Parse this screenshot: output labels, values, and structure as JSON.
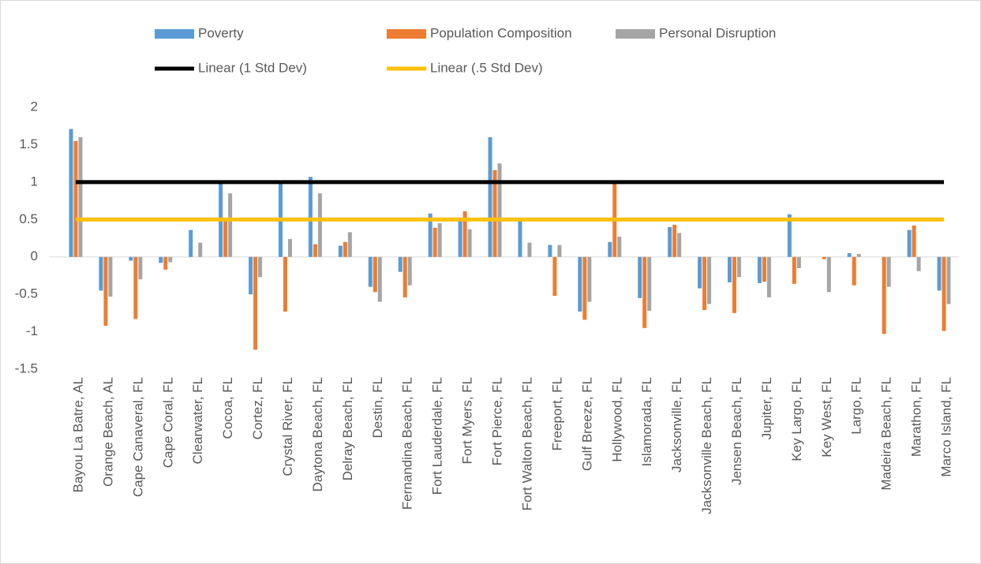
{
  "chart_data": {
    "type": "bar",
    "categories": [
      "Bayou La Batre, AL",
      "Orange Beach, AL",
      "Cape Canaveral, FL",
      "Cape Coral, FL",
      "Clearwater, FL",
      "Cocoa, FL",
      "Cortez, FL",
      "Crystal River, FL",
      "Daytona Beach, FL",
      "Delray Beach, FL",
      "Destin, FL",
      "Fernandina Beach, FL",
      "Fort Lauderdale, FL",
      "Fort Myers, FL",
      "Fort Pierce, FL",
      "Fort Walton Beach, FL",
      "Freeport, FL",
      "Gulf Breeze, FL",
      "Hollywood, FL",
      "Islamorada, FL",
      "Jacksonville, FL",
      "Jacksonville Beach, FL",
      "Jensen Beach, FL",
      "Jupiter, FL",
      "Key Largo, FL",
      "Key West, FL",
      "Largo, FL",
      "Madeira Beach, FL",
      "Marathon, FL",
      "Marco Island, FL"
    ],
    "series": [
      {
        "name": "Poverty",
        "type": "bar",
        "color": "#5b9bd5",
        "values": [
          1.71,
          -0.45,
          -0.05,
          -0.08,
          0.36,
          1.0,
          -0.5,
          1.0,
          1.07,
          0.15,
          -0.4,
          -0.2,
          0.58,
          0.5,
          1.6,
          0.48,
          0.16,
          -0.73,
          0.2,
          -0.55,
          0.4,
          -0.42,
          -0.34,
          -0.35,
          0.57,
          0,
          0.05,
          0,
          0.36,
          -0.45
        ]
      },
      {
        "name": "Population Composition",
        "type": "bar",
        "color": "#ed7d31",
        "values": [
          1.55,
          -0.92,
          -0.83,
          -0.17,
          0,
          0.5,
          -1.24,
          -0.73,
          0.17,
          0.2,
          -0.47,
          -0.54,
          0.39,
          0.61,
          1.16,
          0,
          -0.52,
          -0.84,
          0.98,
          -0.95,
          0.43,
          -0.71,
          -0.75,
          -0.33,
          -0.36,
          -0.03,
          -0.38,
          -1.03,
          0.42,
          -0.99
        ]
      },
      {
        "name": "Personal Disruption",
        "type": "bar",
        "color": "#a5a5a5",
        "values": [
          1.6,
          -0.53,
          -0.3,
          -0.07,
          0.19,
          0.85,
          -0.27,
          0.24,
          0.85,
          0.33,
          -0.6,
          -0.38,
          0.45,
          0.37,
          1.25,
          0.19,
          0.16,
          -0.6,
          0.27,
          -0.72,
          0.32,
          -0.63,
          -0.27,
          -0.54,
          -0.15,
          -0.47,
          0.04,
          -0.4,
          -0.19,
          -0.63
        ]
      },
      {
        "name": "Linear (1 Std Dev)",
        "type": "line",
        "color": "#000000",
        "values": [
          1,
          1,
          1,
          1,
          1,
          1,
          1,
          1,
          1,
          1,
          1,
          1,
          1,
          1,
          1,
          1,
          1,
          1,
          1,
          1,
          1,
          1,
          1,
          1,
          1,
          1,
          1,
          1,
          1,
          1
        ]
      },
      {
        "name": "Linear (.5 Std Dev)",
        "type": "line",
        "color": "#ffc000",
        "values": [
          0.5,
          0.5,
          0.5,
          0.5,
          0.5,
          0.5,
          0.5,
          0.5,
          0.5,
          0.5,
          0.5,
          0.5,
          0.5,
          0.5,
          0.5,
          0.5,
          0.5,
          0.5,
          0.5,
          0.5,
          0.5,
          0.5,
          0.5,
          0.5,
          0.5,
          0.5,
          0.5,
          0.5,
          0.5,
          0.5
        ]
      }
    ],
    "ylim": [
      -1.5,
      2
    ],
    "yticks": [
      -1.5,
      -1,
      -0.5,
      0,
      0.5,
      1,
      1.5,
      2
    ]
  }
}
